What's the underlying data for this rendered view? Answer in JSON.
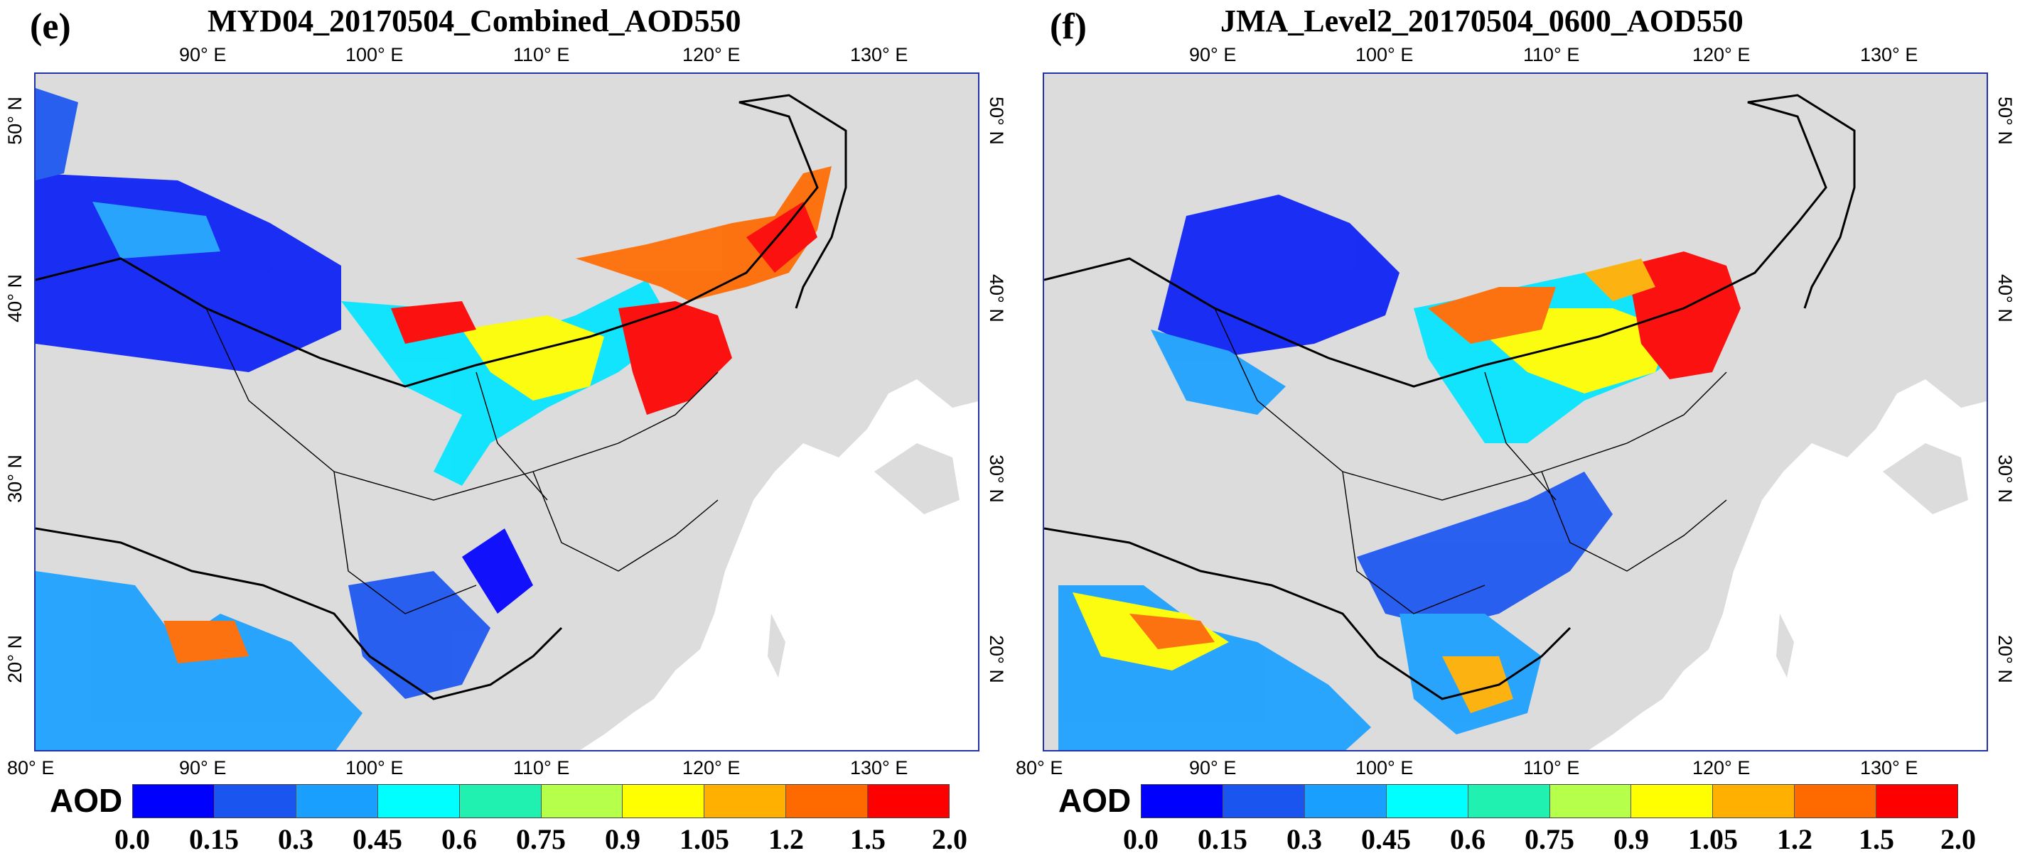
{
  "panels": [
    {
      "label": "(e)",
      "title": "MYD04_20170504_Combined_AOD550"
    },
    {
      "label": "(f)",
      "title": "JMA_Level2_20170504_0600_AOD550"
    }
  ],
  "axes": {
    "lon_top": [
      "90° E",
      "100° E",
      "110° E",
      "120° E",
      "130° E"
    ],
    "lon_bottom": [
      "80° E",
      "90° E",
      "100° E",
      "110° E",
      "120° E",
      "130° E"
    ],
    "lat": [
      "50° N",
      "40° N",
      "30° N",
      "20° N"
    ]
  },
  "colorbar": {
    "name": "AOD",
    "ticks": [
      "0.0",
      "0.15",
      "0.3",
      "0.45",
      "0.6",
      "0.75",
      "0.9",
      "1.05",
      "1.2",
      "1.5",
      "2.0"
    ],
    "colors": [
      "#0000ff",
      "#1a55f0",
      "#19a0ff",
      "#00ffff",
      "#20f0b0",
      "#b6ff4a",
      "#ffff00",
      "#ffb000",
      "#ff6a00",
      "#ff0000"
    ]
  },
  "map_colors": {
    "land": "#dcdcdc",
    "ocean": "#ffffff",
    "border": "#000000"
  }
}
